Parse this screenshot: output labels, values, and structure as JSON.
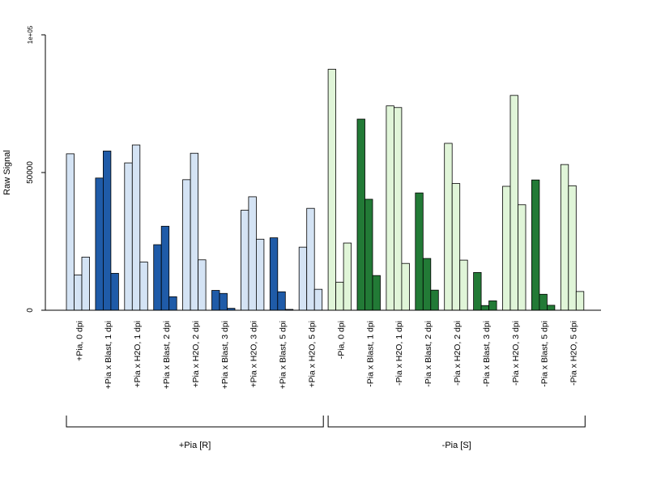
{
  "chart_data": {
    "type": "bar",
    "ylabel": "Raw Signal",
    "xlabel": "",
    "ylim": [
      0,
      100000
    ],
    "yticks": [
      {
        "value": 0,
        "label": "0"
      },
      {
        "value": 50000,
        "label": "50000"
      },
      {
        "value": 100000,
        "label": "1e+05"
      }
    ],
    "colors": {
      "light_blue": "#d4e3f4",
      "dark_blue": "#1f5ba8",
      "light_green": "#e0f5d8",
      "dark_green": "#227a36"
    },
    "categories": [
      {
        "label": "+Pia, 0 dpi",
        "color": "light_blue",
        "values": [
          56800,
          12800,
          19300
        ]
      },
      {
        "label": "+Pia x Blast, 1 dpi",
        "color": "dark_blue",
        "values": [
          48000,
          57800,
          13400
        ]
      },
      {
        "label": "+Pia x H2O, 1 dpi",
        "color": "light_blue",
        "values": [
          53500,
          60000,
          17500
        ]
      },
      {
        "label": "+Pia x Blast, 2 dpi",
        "color": "dark_blue",
        "values": [
          23800,
          30500,
          4900
        ]
      },
      {
        "label": "+Pia x H2O, 2 dpi",
        "color": "light_blue",
        "values": [
          47400,
          57000,
          18300
        ]
      },
      {
        "label": "+Pia x Blast, 3 dpi",
        "color": "dark_blue",
        "values": [
          7200,
          6100,
          700
        ]
      },
      {
        "label": "+Pia x H2O, 3 dpi",
        "color": "light_blue",
        "values": [
          36300,
          41200,
          25800
        ]
      },
      {
        "label": "+Pia x Blast, 5 dpi",
        "color": "dark_blue",
        "values": [
          26300,
          6700,
          300
        ]
      },
      {
        "label": "+Pia x H2O, 5 dpi",
        "color": "light_blue",
        "values": [
          22900,
          37000,
          7600
        ]
      },
      {
        "label": "-Pia, 0 dpi",
        "color": "light_green",
        "values": [
          87500,
          10200,
          24400
        ]
      },
      {
        "label": "-Pia x Blast, 1 dpi",
        "color": "dark_green",
        "values": [
          69400,
          40300,
          12600
        ]
      },
      {
        "label": "-Pia x H2O, 1 dpi",
        "color": "light_green",
        "values": [
          74200,
          73600,
          17000
        ]
      },
      {
        "label": "-Pia x Blast, 2 dpi",
        "color": "dark_green",
        "values": [
          42600,
          18800,
          7300
        ]
      },
      {
        "label": "-Pia x H2O, 2 dpi",
        "color": "light_green",
        "values": [
          60600,
          46000,
          18200
        ]
      },
      {
        "label": "-Pia x Blast, 3 dpi",
        "color": "dark_green",
        "values": [
          13700,
          1700,
          3400
        ]
      },
      {
        "label": "-Pia x H2O, 3 dpi",
        "color": "light_green",
        "values": [
          45000,
          78000,
          38300
        ]
      },
      {
        "label": "-Pia x Blast, 5 dpi",
        "color": "dark_green",
        "values": [
          47300,
          5800,
          1800
        ]
      },
      {
        "label": "-Pia x H2O, 5 dpi",
        "color": "light_green",
        "values": [
          52900,
          45200,
          6800
        ]
      }
    ],
    "groups": [
      {
        "label": "+Pia [R]",
        "from_index": 0,
        "to_index": 8
      },
      {
        "label": "-Pia [S]",
        "from_index": 9,
        "to_index": 17
      }
    ]
  }
}
